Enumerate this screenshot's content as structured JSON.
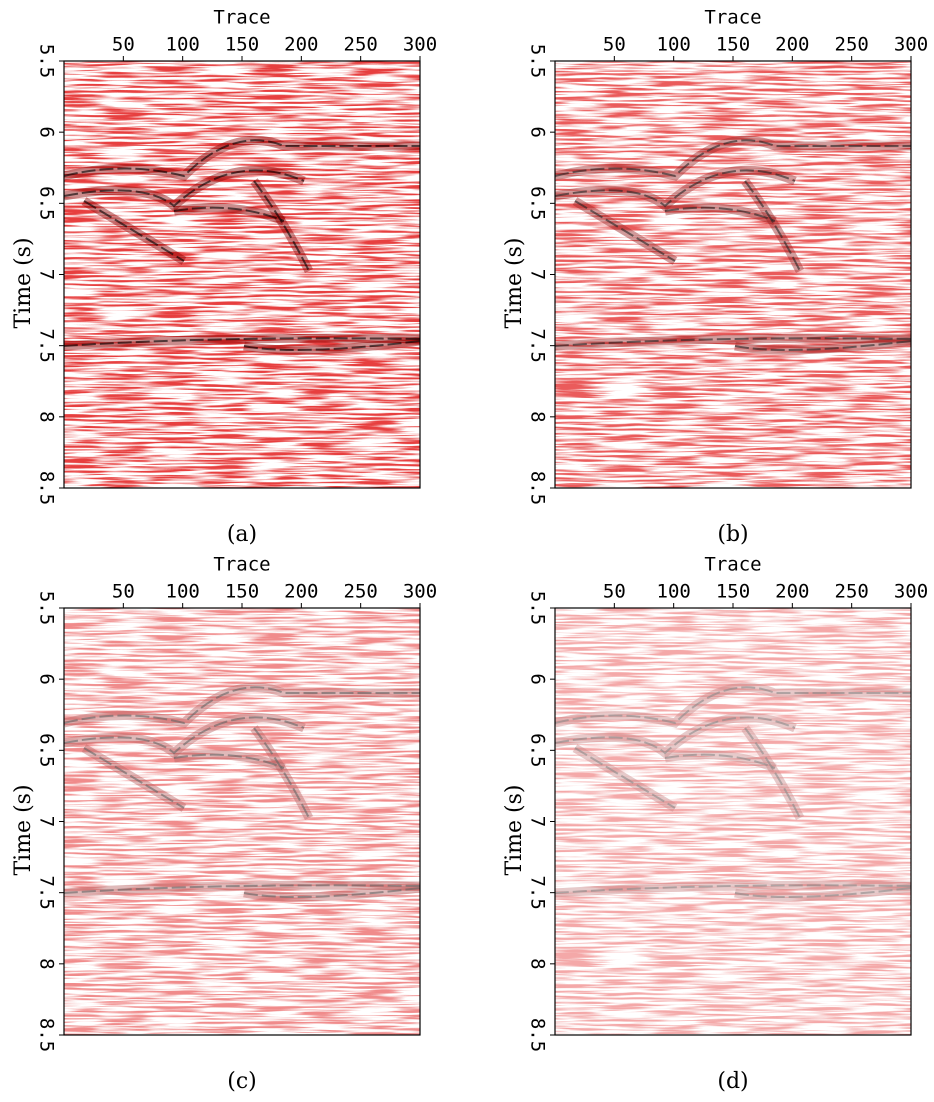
{
  "chart_data": [
    {
      "type": "seismic-image",
      "caption": "(a)",
      "xlabel": "Trace",
      "ylabel": "Time (s)",
      "xlim": [
        0,
        300
      ],
      "xticks": [
        50,
        100,
        150,
        200,
        250,
        300
      ],
      "ylim": [
        5.5,
        8.5
      ],
      "yticks": [
        5.5,
        6,
        6.5,
        7,
        7.5,
        8,
        8.5
      ],
      "color": "#cc0000"
    },
    {
      "type": "seismic-image",
      "caption": "(b)",
      "xlabel": "Trace",
      "ylabel": "Time (s)",
      "xlim": [
        0,
        300
      ],
      "xticks": [
        50,
        100,
        150,
        200,
        250,
        300
      ],
      "ylim": [
        5.5,
        8.5
      ],
      "yticks": [
        5.5,
        6,
        6.5,
        7,
        7.5,
        8,
        8.5
      ],
      "color": "#cc0000"
    },
    {
      "type": "seismic-image",
      "caption": "(c)",
      "xlabel": "Trace",
      "ylabel": "Time (s)",
      "xlim": [
        0,
        300
      ],
      "xticks": [
        50,
        100,
        150,
        200,
        250,
        300
      ],
      "ylim": [
        5.5,
        8.5
      ],
      "yticks": [
        5.5,
        6,
        6.5,
        7,
        7.5,
        8,
        8.5
      ],
      "color": "#cc0000"
    },
    {
      "type": "seismic-image",
      "caption": "(d)",
      "xlabel": "Trace",
      "ylabel": "Time (s)",
      "xlim": [
        0,
        300
      ],
      "xticks": [
        50,
        100,
        150,
        200,
        250,
        300
      ],
      "ylim": [
        5.5,
        8.5
      ],
      "yticks": [
        5.5,
        6,
        6.5,
        7,
        7.5,
        8,
        8.5
      ],
      "color": "#cc0000"
    }
  ]
}
